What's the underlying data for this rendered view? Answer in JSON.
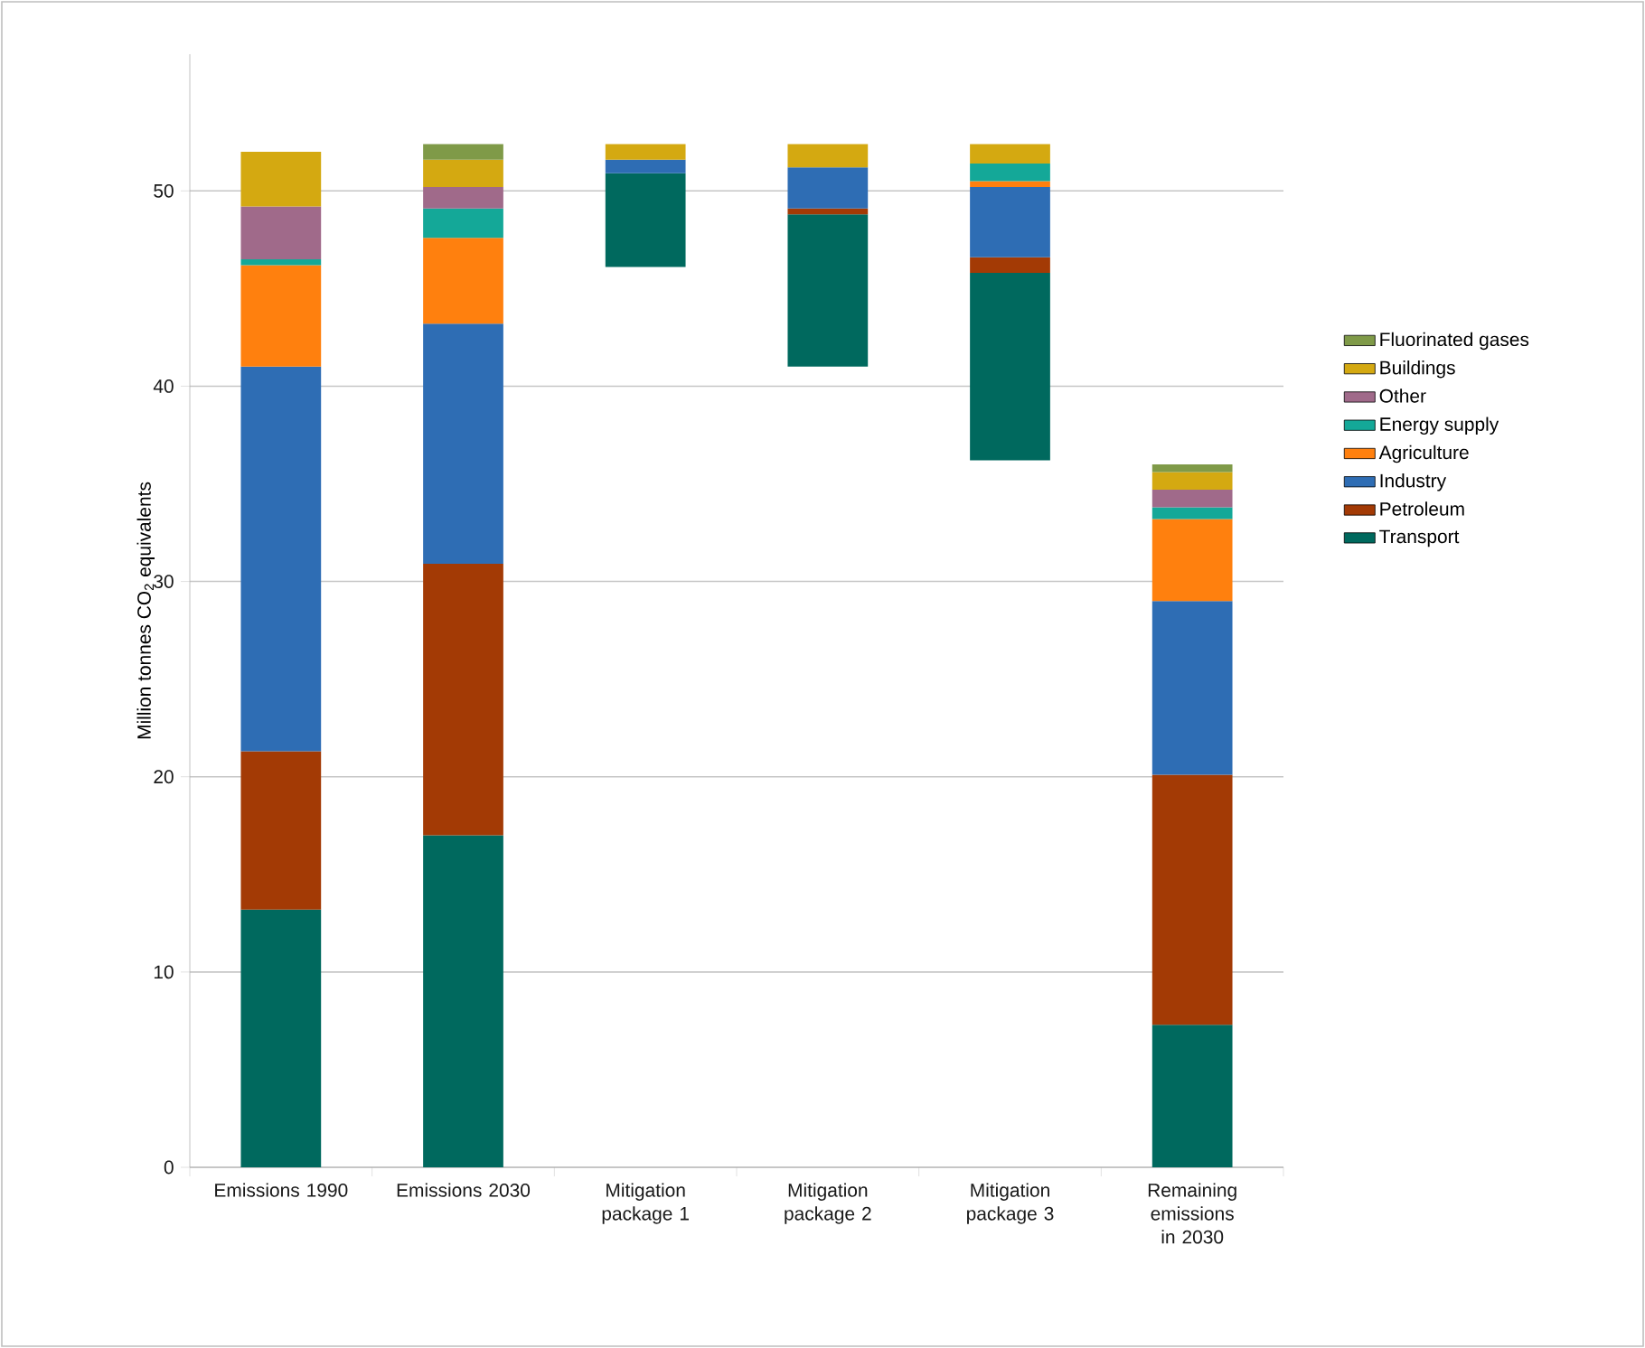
{
  "chart_data": {
    "type": "bar",
    "stacked": true,
    "ylabel": "Million tonnes CO$_{2}$ equivalents",
    "categories": [
      "Emissions 1990",
      "Emissions 2030",
      "Mitigation package 1",
      "Mitigation package 2",
      "Mitigation package 3",
      "Remaining emissions in 2030"
    ],
    "series": [
      {
        "name": "Transport",
        "color": "#00695e",
        "base": [
          0,
          0,
          46.1,
          41.0,
          36.2,
          0
        ],
        "values": [
          13.2,
          17.0,
          4.8,
          7.8,
          9.6,
          7.3
        ]
      },
      {
        "name": "Petroleum",
        "color": "#a33a05",
        "values": [
          8.1,
          13.9,
          null,
          0.3,
          0.8,
          12.8
        ]
      },
      {
        "name": "Industry",
        "color": "#2e6db4",
        "values": [
          19.7,
          12.3,
          0.7,
          2.1,
          3.6,
          8.9
        ]
      },
      {
        "name": "Agriculture",
        "color": "#ff800e",
        "values": [
          5.2,
          4.4,
          null,
          null,
          0.3,
          4.2
        ]
      },
      {
        "name": "Energy supply",
        "color": "#14a898",
        "values": [
          0.3,
          1.5,
          null,
          null,
          0.9,
          0.6
        ]
      },
      {
        "name": "Other",
        "color": "#a06a8a",
        "values": [
          2.7,
          1.1,
          null,
          null,
          null,
          0.9
        ]
      },
      {
        "name": "Buildings",
        "color": "#d4a911",
        "values": [
          2.8,
          1.4,
          0.8,
          1.2,
          1.0,
          0.9
        ]
      },
      {
        "name": "Fluorinated gases",
        "color": "#7f9a48",
        "values": [
          null,
          0.8,
          null,
          null,
          null,
          0.4
        ]
      }
    ],
    "ylim": [
      0,
      57
    ],
    "yticks": [
      0,
      10,
      20,
      30,
      40,
      50
    ],
    "grid": "y",
    "legend": "right"
  }
}
